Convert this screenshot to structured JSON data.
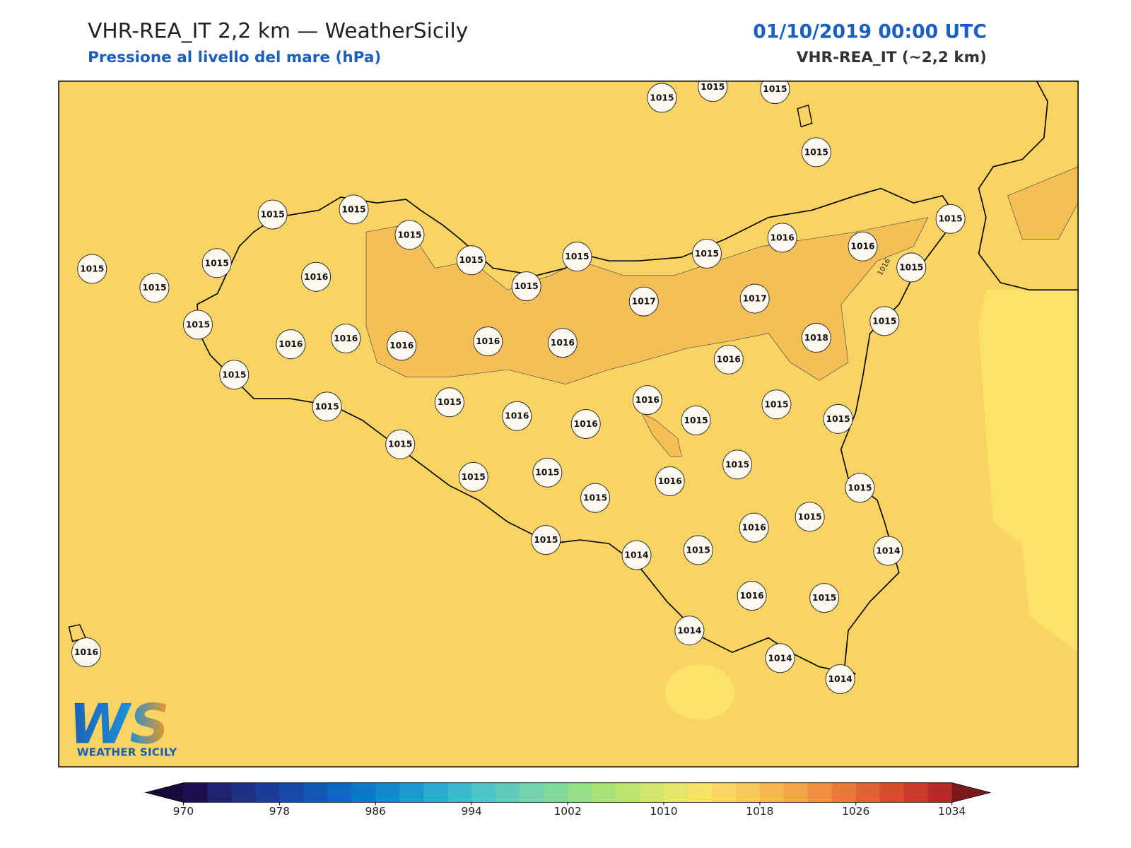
{
  "header": {
    "title": "VHR-REA_IT 2,2 km — WeatherSicily",
    "subtitle": "Pressione al livello del mare (hPa)",
    "date": "01/10/2019 00:00 UTC",
    "model": "VHR-REA_IT (~2,2 km)"
  },
  "stations": [
    1015,
    1015,
    1015,
    1015,
    1015,
    1015,
    1015,
    1015,
    1015,
    1015,
    1016,
    1016,
    1015,
    1015,
    1015,
    1015,
    1015,
    1016,
    1015,
    1017,
    1017,
    1015,
    1015,
    1016,
    1016,
    1016,
    1016,
    1016,
    1018,
    1016,
    1015,
    1015,
    1015,
    1016,
    1016,
    1016,
    1015,
    1015,
    1015,
    1015,
    1015,
    1015,
    1015,
    1016,
    1015,
    1015,
    1015,
    1016,
    1015,
    1014,
    1015,
    1014,
    1016,
    1015,
    1014,
    1014,
    1014,
    1016
  ],
  "contour_labels": [
    "1016"
  ],
  "logo": {
    "mark": "WS",
    "name": "WEATHER SICILY"
  },
  "colorbar": {
    "min": 970,
    "max": 1034,
    "step": 2,
    "ticks": [
      970,
      978,
      986,
      994,
      1002,
      1010,
      1018,
      1026,
      1034
    ],
    "colors": [
      "#1e0f50",
      "#1f2370",
      "#1f2f85",
      "#1a3c98",
      "#1649a8",
      "#1258b5",
      "#0e68c0",
      "#0d78c8",
      "#138acd",
      "#1d9ad0",
      "#2aabd0",
      "#3cb9ce",
      "#4fc4c8",
      "#5fcbbb",
      "#70d3ab",
      "#82da9a",
      "#95df87",
      "#a9e277",
      "#bde46d",
      "#d1e66b",
      "#e3e56c",
      "#f5e36a",
      "#fad764",
      "#f8c85a",
      "#f5b851",
      "#f2a449",
      "#ee9040",
      "#e97b38",
      "#e06431",
      "#d64d2c",
      "#c83a2a",
      "#b82a27"
    ],
    "under_color": "#160a3a",
    "over_color": "#7a1a1a"
  }
}
